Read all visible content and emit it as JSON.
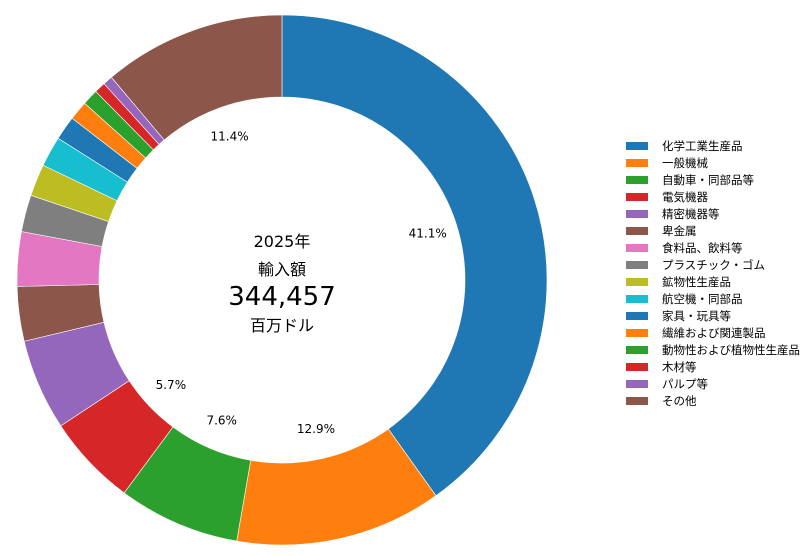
{
  "chart_data": {
    "type": "pie",
    "donut": true,
    "center": {
      "year": "2025年",
      "label": "輸入額",
      "value": "344,457",
      "unit": "百万ドル"
    },
    "categories": [
      "化学工業生産品",
      "一般機械",
      "自動車・同部品等",
      "電気機器",
      "精密機器等",
      "卑金属",
      "食料品、飲料等",
      "プラスチック・ゴム",
      "鉱物性生産品",
      "航空機・同部品",
      "家具・玩具等",
      "繊維および関連製品",
      "動物性および植物性生産品",
      "木材等",
      "パルプ等",
      "その他"
    ],
    "values": [
      41.1,
      12.9,
      7.6,
      5.7,
      5.7,
      3.4,
      3.4,
      2.3,
      2.0,
      1.9,
      1.5,
      1.2,
      1.0,
      0.7,
      0.6,
      11.4
    ],
    "colors": [
      "#1f77b4",
      "#ff7f0e",
      "#2ca02c",
      "#d62728",
      "#9467bd",
      "#8c564b",
      "#e377c2",
      "#7f7f7f",
      "#bcbd22",
      "#17becf",
      "#1f77b4",
      "#ff7f0e",
      "#2ca02c",
      "#d62728",
      "#9467bd",
      "#8c564b"
    ],
    "slice_labels": [
      "41.1%",
      "12.9%",
      "7.6%",
      "5.7%",
      "",
      "",
      "",
      "",
      "",
      "",
      "",
      "",
      "",
      "",
      "",
      "11.4%"
    ],
    "legend_position": "right"
  }
}
